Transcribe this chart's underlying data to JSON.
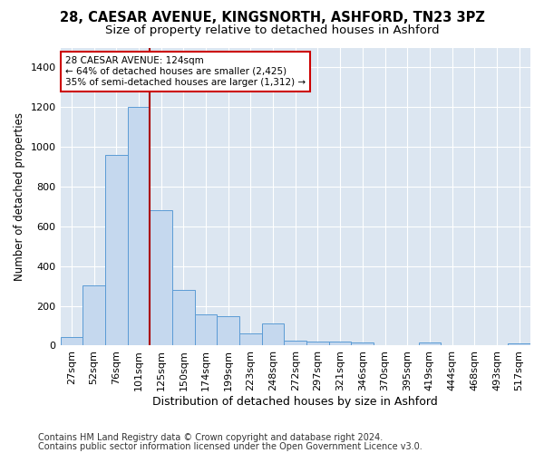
{
  "title1": "28, CAESAR AVENUE, KINGSNORTH, ASHFORD, TN23 3PZ",
  "title2": "Size of property relative to detached houses in Ashford",
  "xlabel": "Distribution of detached houses by size in Ashford",
  "ylabel": "Number of detached properties",
  "bin_labels": [
    "27sqm",
    "52sqm",
    "76sqm",
    "101sqm",
    "125sqm",
    "150sqm",
    "174sqm",
    "199sqm",
    "223sqm",
    "248sqm",
    "272sqm",
    "297sqm",
    "321sqm",
    "346sqm",
    "370sqm",
    "395sqm",
    "419sqm",
    "444sqm",
    "468sqm",
    "493sqm",
    "517sqm"
  ],
  "bar_values": [
    45,
    305,
    960,
    1200,
    680,
    280,
    155,
    150,
    60,
    110,
    25,
    20,
    20,
    15,
    0,
    0,
    15,
    0,
    0,
    0,
    12
  ],
  "bar_color": "#c5d8ee",
  "bar_edge_color": "#5b9bd5",
  "vline_position": 3.5,
  "vline_color": "#aa0000",
  "annotation_text": "28 CAESAR AVENUE: 124sqm\n← 64% of detached houses are smaller (2,425)\n35% of semi-detached houses are larger (1,312) →",
  "annotation_box_color": "#ffffff",
  "annotation_box_edge": "#cc0000",
  "ylim": [
    0,
    1500
  ],
  "yticks": [
    0,
    200,
    400,
    600,
    800,
    1000,
    1200,
    1400
  ],
  "footnote1": "Contains HM Land Registry data © Crown copyright and database right 2024.",
  "footnote2": "Contains public sector information licensed under the Open Government Licence v3.0.",
  "bg_color": "#dce6f1",
  "title1_fontsize": 10.5,
  "title2_fontsize": 9.5,
  "xlabel_fontsize": 9,
  "ylabel_fontsize": 8.5,
  "tick_fontsize": 8,
  "annot_fontsize": 7.5,
  "footnote_fontsize": 7
}
